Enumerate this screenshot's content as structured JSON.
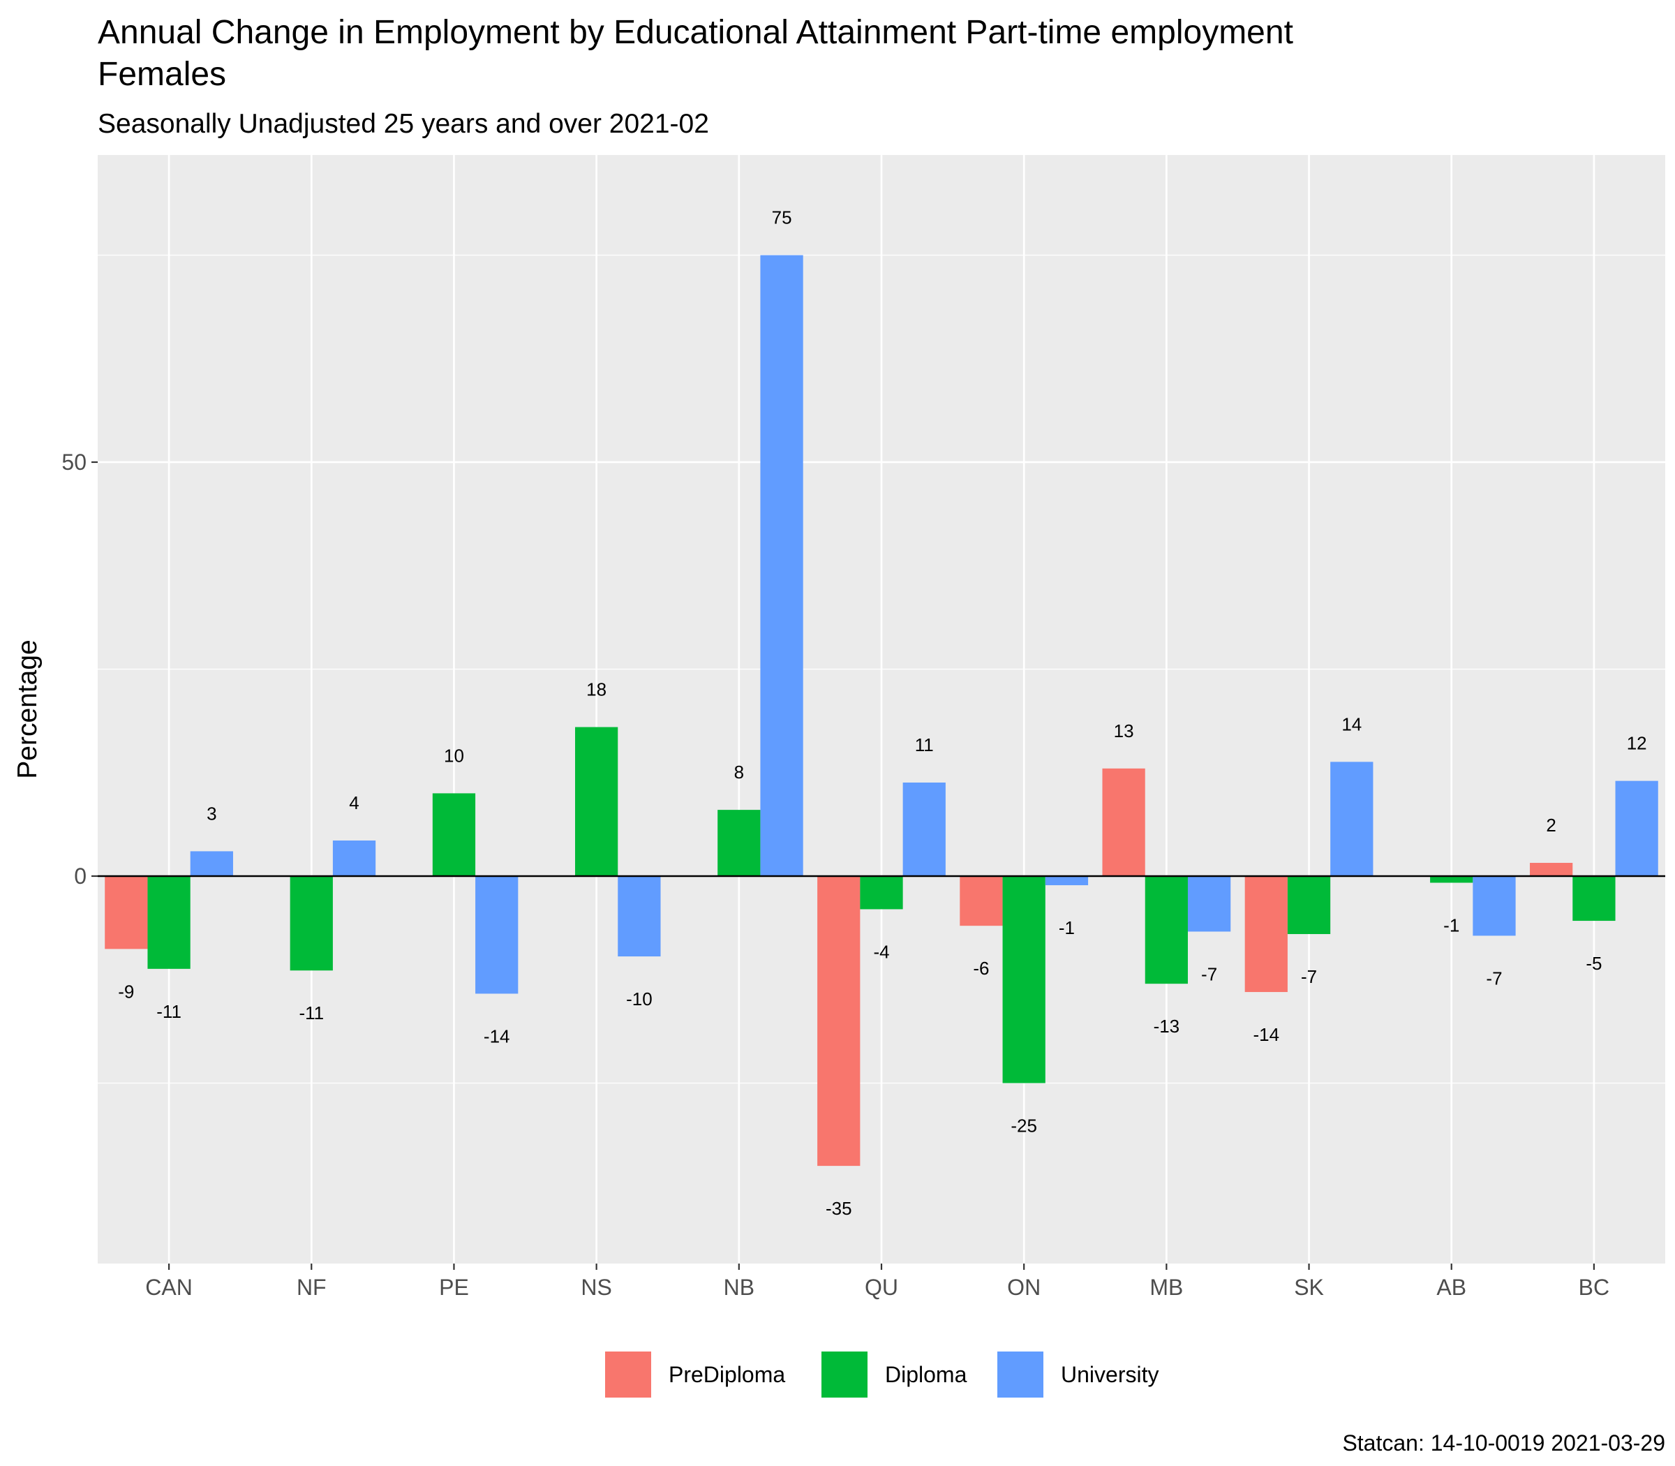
{
  "chart_data": {
    "type": "bar",
    "title_line1": "Annual Change in Employment by Educational Attainment Part-time employment",
    "title_line2": "Females",
    "subtitle": "Seasonally Unadjusted 25 years and over 2021-02",
    "xlabel": "",
    "ylabel": "Percentage",
    "caption": "Statcan: 14-10-0019 2021-03-29",
    "categories": [
      "CAN",
      "NF",
      "PE",
      "NS",
      "NB",
      "QU",
      "ON",
      "MB",
      "SK",
      "AB",
      "BC"
    ],
    "ylim": [
      -47,
      87
    ],
    "yticks": [
      0,
      50
    ],
    "ytick_labels": [
      "0",
      "50"
    ],
    "grid": true,
    "legend_position": "bottom",
    "series": [
      {
        "name": "PreDiploma",
        "color": "#F8766D",
        "values": [
          -8.8,
          null,
          null,
          null,
          null,
          -35,
          -6,
          13,
          -14,
          null,
          1.6
        ],
        "labels": [
          "-9",
          "",
          "",
          "",
          "",
          "-35",
          "-6",
          "13",
          "-14",
          "",
          "2"
        ]
      },
      {
        "name": "Diploma",
        "color": "#00BA38",
        "values": [
          -11.2,
          -11.4,
          10,
          18,
          8,
          -4,
          -25,
          -13,
          -7,
          -0.8,
          -5.4
        ],
        "labels": [
          "-11",
          "-11",
          "10",
          "18",
          "8",
          "-4",
          "-25",
          "-13",
          "-7",
          "-1",
          "-5"
        ]
      },
      {
        "name": "University",
        "color": "#619CFF",
        "values": [
          3,
          4.3,
          -14.2,
          -9.7,
          75,
          11.3,
          -1.1,
          -6.7,
          13.8,
          -7.2,
          11.5
        ],
        "labels": [
          "3",
          "4",
          "-14",
          "-10",
          "75",
          "11",
          "-1",
          "-7",
          "14",
          "-7",
          "12"
        ]
      }
    ]
  }
}
